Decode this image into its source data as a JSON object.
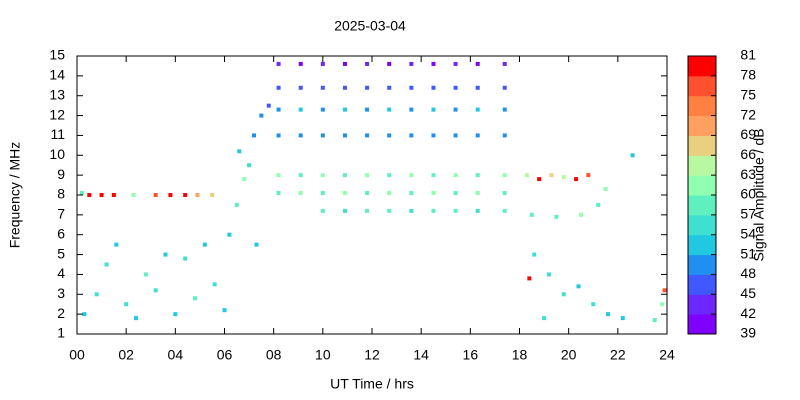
{
  "chart_data": {
    "type": "scatter",
    "title": "2025-03-04",
    "x_label": "UT Time / hrs",
    "y_label": "Frequency / MHz",
    "xlim": [
      0,
      24
    ],
    "ylim": [
      1,
      15
    ],
    "xticks": [
      {
        "value": 0,
        "label": "00"
      },
      {
        "value": 2,
        "label": "02"
      },
      {
        "value": 4,
        "label": "04"
      },
      {
        "value": 6,
        "label": "06"
      },
      {
        "value": 8,
        "label": "08"
      },
      10,
      12,
      14,
      16,
      18,
      20,
      22,
      24
    ],
    "yticks": [
      1,
      2,
      3,
      4,
      5,
      6,
      7,
      8,
      9,
      10,
      11,
      12,
      13,
      14,
      15
    ],
    "colorbar": {
      "label": "Signal Amplitude / dB",
      "levels": [
        39,
        42,
        45,
        48,
        51,
        54,
        57,
        60,
        63,
        66,
        69,
        72,
        75,
        78,
        81
      ],
      "colors": [
        "#8000ff",
        "#6a28ff",
        "#4058ff",
        "#2090f0",
        "#20c8e0",
        "#40e0d0",
        "#60f0c0",
        "#90ffb0",
        "#b8f8a0",
        "#e8d080",
        "#ffa060",
        "#ff8040",
        "#ff5030",
        "#ff0000"
      ]
    },
    "x": [
      0.3,
      0.8,
      1.2,
      1.6,
      2.0,
      2.4,
      2.8,
      3.2,
      3.6,
      4.0,
      4.4,
      4.8,
      5.2,
      5.6,
      6.0,
      0.5,
      1.0,
      1.5,
      3.2,
      3.8,
      4.4,
      4.9,
      5.5,
      0.2,
      2.3,
      6.2,
      6.5,
      6.8,
      7.0,
      7.2,
      7.5,
      7.8,
      7.3,
      6.6,
      8.2,
      8.2,
      8.2,
      8.2,
      8.2,
      8.2,
      9.1,
      9.1,
      9.1,
      9.1,
      9.1,
      9.1,
      10.0,
      10.0,
      10.0,
      10.0,
      10.0,
      10.0,
      10.9,
      10.9,
      10.9,
      10.9,
      10.9,
      10.9,
      11.8,
      11.8,
      11.8,
      11.8,
      11.8,
      11.8,
      12.7,
      12.7,
      12.7,
      12.7,
      12.7,
      12.7,
      13.6,
      13.6,
      13.6,
      13.6,
      13.6,
      13.6,
      14.5,
      14.5,
      14.5,
      14.5,
      14.5,
      14.5,
      15.4,
      15.4,
      15.4,
      15.4,
      15.4,
      15.4,
      16.3,
      16.3,
      16.3,
      16.3,
      16.3,
      16.3,
      17.4,
      17.4,
      17.4,
      17.4,
      17.4,
      17.4,
      10.0,
      10.9,
      11.8,
      12.7,
      13.6,
      14.5,
      15.4,
      16.3,
      17.4,
      18.3,
      18.8,
      19.3,
      19.8,
      20.3,
      20.8,
      18.5,
      19.5,
      20.5,
      21.2,
      18.6,
      19.2,
      19.8,
      20.4,
      21.0,
      21.6,
      22.2,
      23.5,
      23.8,
      19.0,
      23.9,
      22.6,
      21.5,
      18.4
    ],
    "y": [
      2.0,
      3.0,
      4.5,
      5.5,
      2.5,
      1.8,
      4.0,
      3.2,
      5.0,
      2.0,
      4.8,
      2.8,
      5.5,
      3.5,
      2.2,
      8,
      8,
      8,
      8,
      8,
      8,
      8,
      8,
      8.1,
      8.0,
      6.0,
      7.5,
      8.8,
      9.5,
      11.0,
      12.0,
      12.5,
      5.5,
      10.2,
      14.6,
      13.4,
      12.3,
      11.0,
      9.0,
      8.1,
      14.6,
      13.4,
      12.3,
      11.0,
      9.0,
      8.1,
      14.6,
      13.4,
      12.3,
      11.0,
      9.0,
      8.1,
      14.6,
      13.4,
      12.3,
      11.0,
      9.0,
      8.1,
      14.6,
      13.4,
      12.3,
      11.0,
      9.0,
      8.1,
      14.6,
      13.4,
      12.3,
      11.0,
      9.0,
      8.1,
      14.6,
      13.4,
      12.3,
      11.0,
      9.0,
      8.1,
      14.6,
      13.4,
      12.3,
      11.0,
      9.0,
      8.1,
      14.6,
      13.4,
      12.3,
      11.0,
      9.0,
      8.1,
      14.6,
      13.4,
      12.3,
      11.0,
      9.0,
      8.1,
      14.6,
      13.4,
      12.3,
      11.0,
      9.0,
      8.1,
      7.2,
      7.2,
      7.2,
      7.2,
      7.2,
      7.2,
      7.2,
      7.2,
      7.2,
      9.0,
      8.8,
      9.0,
      8.9,
      8.8,
      9.0,
      7.0,
      6.9,
      7.0,
      7.5,
      5.0,
      4.0,
      3.0,
      3.4,
      2.5,
      2.0,
      1.8,
      1.7,
      2.5,
      1.8,
      3.2,
      10.0,
      8.3,
      3.8
    ],
    "values": [
      51,
      54,
      54,
      51,
      54,
      51,
      57,
      54,
      51,
      51,
      54,
      57,
      51,
      54,
      51,
      78,
      78,
      78,
      75,
      78,
      78,
      69,
      66,
      57,
      60,
      51,
      57,
      60,
      54,
      48,
      48,
      45,
      51,
      51,
      42,
      45,
      48,
      48,
      60,
      57,
      39,
      45,
      51,
      48,
      57,
      60,
      42,
      45,
      48,
      48,
      60,
      57,
      39,
      45,
      51,
      48,
      57,
      60,
      42,
      45,
      48,
      48,
      60,
      57,
      39,
      45,
      51,
      48,
      57,
      60,
      42,
      45,
      48,
      48,
      60,
      57,
      39,
      45,
      51,
      48,
      57,
      60,
      42,
      45,
      48,
      48,
      60,
      57,
      39,
      45,
      51,
      48,
      57,
      60,
      42,
      45,
      48,
      48,
      60,
      57,
      57,
      54,
      57,
      57,
      54,
      57,
      57,
      54,
      57,
      63,
      78,
      66,
      63,
      78,
      75,
      57,
      57,
      60,
      57,
      54,
      54,
      54,
      51,
      54,
      51,
      51,
      57,
      60,
      54,
      75,
      51,
      60,
      78
    ]
  }
}
